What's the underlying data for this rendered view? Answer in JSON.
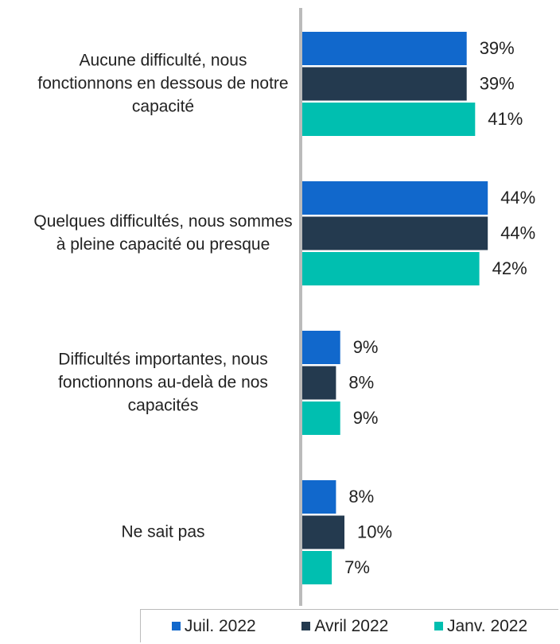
{
  "chart_data": {
    "type": "bar",
    "orientation": "horizontal",
    "categories": [
      "Aucune difficulté, nous fonctionnons en dessous de notre capacité",
      "Quelques difficultés, nous sommes à pleine capacité ou presque",
      "Difficultés importantes, nous fonctionnons au-delà de nos capacités",
      "Ne sait pas"
    ],
    "series": [
      {
        "name": "Juil. 2022",
        "color": "#1168cc",
        "values": [
          39,
          44,
          9,
          8
        ],
        "value_labels": [
          "39%",
          "44%",
          "9%",
          "8%"
        ]
      },
      {
        "name": "Avril 2022",
        "color": "#243a4f",
        "values": [
          39,
          44,
          8,
          10
        ],
        "value_labels": [
          "39%",
          "44%",
          "8%",
          "10%"
        ]
      },
      {
        "name": "Janv. 2022",
        "color": "#00bfb0",
        "values": [
          41,
          42,
          9,
          7
        ],
        "value_labels": [
          "41%",
          "42%",
          "9%",
          "7%"
        ]
      }
    ],
    "legend": "bottom"
  }
}
